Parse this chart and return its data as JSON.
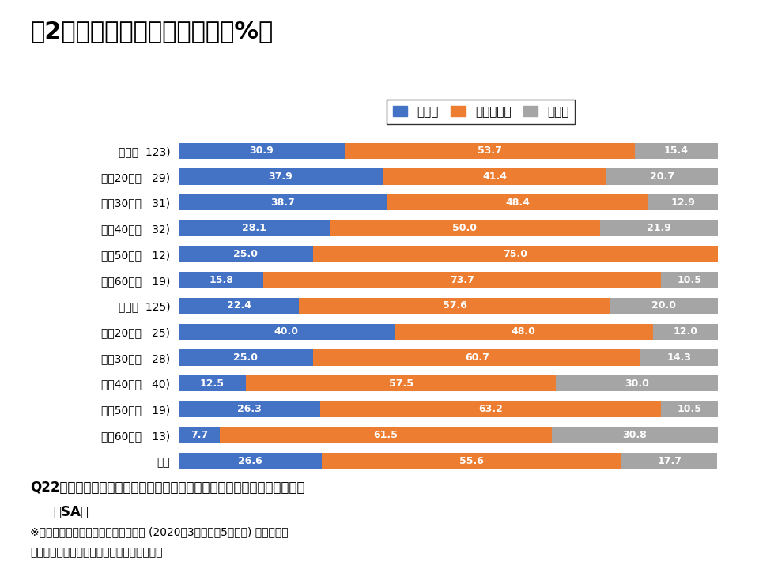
{
  "title": "図2．暴力行為の頻度の変化（%）",
  "categories": [
    "男性（  123)",
    "男性20代（   29)",
    "男性30代（   31)",
    "男性40代（   32)",
    "男性50代（   12)",
    "男性60代（   19)",
    "女性（  125)",
    "女性20代（   25)",
    "女性30代（   28)",
    "女性40代（   40)",
    "女性50代（   19)",
    "女性60代（   13)",
    "全体"
  ],
  "reduced": [
    30.9,
    37.9,
    38.7,
    28.1,
    25.0,
    15.8,
    22.4,
    40.0,
    25.0,
    12.5,
    26.3,
    7.7,
    26.6
  ],
  "unchanged": [
    53.7,
    41.4,
    48.4,
    50.0,
    75.0,
    73.7,
    57.6,
    48.0,
    60.7,
    57.5,
    63.2,
    61.5,
    55.6
  ],
  "increased": [
    15.4,
    20.7,
    12.9,
    21.9,
    0.0,
    10.5,
    20.0,
    12.0,
    14.3,
    30.0,
    10.5,
    30.8,
    17.7
  ],
  "color_reduced": "#4472C4",
  "color_unchanged": "#ED7D31",
  "color_increased": "#A5A5A5",
  "legend_labels": [
    "減った",
    "変わらない",
    "増えた"
  ],
  "footnote1": "Q22　この時期に、パートナー間での暴力行為の頻度は変わりましたか。",
  "footnote2": "（SA）",
  "footnote3": "※この時期とは「緊急事態宣言」前後 (2020年3月下旬～5月下旬) になります",
  "footnote4": "【ベース：パートナー間の暴力があった方】",
  "background_color": "#FFFFFF"
}
